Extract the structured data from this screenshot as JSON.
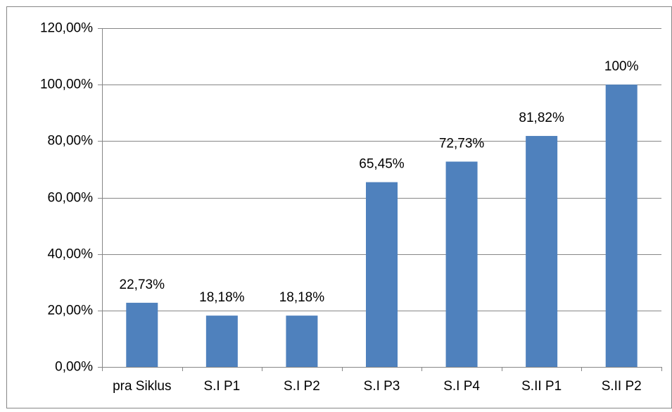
{
  "chart_data": {
    "type": "bar",
    "categories": [
      "pra Siklus",
      "S.I P1",
      "S.I P2",
      "S.I P3",
      "S.I P4",
      "S.II P1",
      "S.II P2"
    ],
    "values": [
      22.73,
      18.18,
      18.18,
      65.45,
      72.73,
      81.82,
      100
    ],
    "value_labels": [
      "22,73%",
      "18,18%",
      "18,18%",
      "65,45%",
      "72,73%",
      "81,82%",
      "100%"
    ],
    "color": "#4f81bd",
    "ylim": [
      0,
      120
    ],
    "yticks": [
      {
        "value": 0,
        "label": "0,00%"
      },
      {
        "value": 20,
        "label": "20,00%"
      },
      {
        "value": 40,
        "label": "40,00%"
      },
      {
        "value": 60,
        "label": "60,00%"
      },
      {
        "value": 80,
        "label": "80,00%"
      },
      {
        "value": 100,
        "label": "100,00%"
      },
      {
        "value": 120,
        "label": "120,00%"
      }
    ],
    "grid": true
  }
}
